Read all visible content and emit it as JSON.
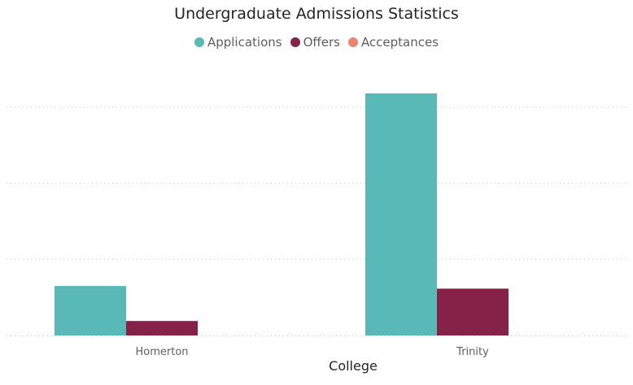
{
  "chart_data": {
    "type": "bar",
    "title": "Undergraduate Admissions Statistics",
    "xlabel": "College",
    "ylabel": "",
    "categories": [
      "Homerton",
      "Trinity"
    ],
    "series": [
      {
        "name": "Applications",
        "color": "#58B9B7",
        "values": [
          650,
          3180
        ]
      },
      {
        "name": "Offers",
        "color": "#862248",
        "values": [
          190,
          615
        ]
      },
      {
        "name": "Acceptances",
        "color": "#E8856A",
        "values": [
          0,
          0
        ]
      }
    ],
    "ylim": [
      0,
      3500
    ],
    "gridlines": [
      1000,
      2000,
      3000
    ],
    "grid": true,
    "legend_position": "top-center"
  }
}
